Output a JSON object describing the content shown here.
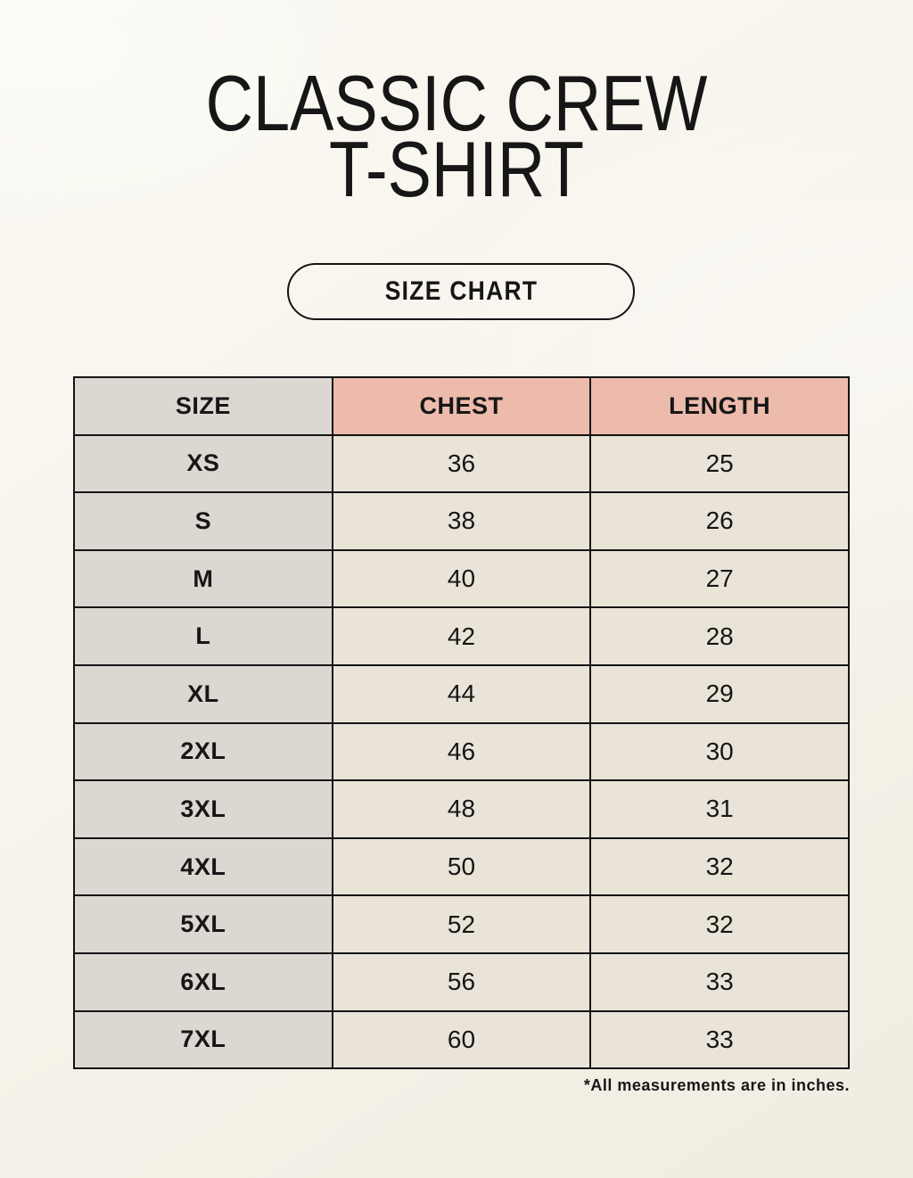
{
  "header": {
    "title_line1": "CLASSIC CREW",
    "title_line2": "T-SHIRT",
    "size_chart_badge": "SIZE CHART"
  },
  "table": {
    "columns": [
      "SIZE",
      "CHEST",
      "LENGTH"
    ],
    "rows": [
      [
        "XS",
        "36",
        "25"
      ],
      [
        "S",
        "38",
        "26"
      ],
      [
        "M",
        "40",
        "27"
      ],
      [
        "L",
        "42",
        "28"
      ],
      [
        "XL",
        "44",
        "29"
      ],
      [
        "2XL",
        "46",
        "30"
      ],
      [
        "3XL",
        "48",
        "31"
      ],
      [
        "4XL",
        "50",
        "32"
      ],
      [
        "5XL",
        "52",
        "32"
      ],
      [
        "6XL",
        "56",
        "33"
      ],
      [
        "7XL",
        "60",
        "33"
      ]
    ]
  },
  "footnote": "*All measurements are in inches.",
  "colors": {
    "background": "#F7F4EC",
    "table_border": "#141414",
    "gray_cell": "#DDD7D2",
    "pink_header": "#ECBBAB",
    "cream_cell": "#EAE4D8",
    "text": "#161616"
  },
  "chart_data": {
    "type": "table",
    "title": "CLASSIC CREW T-SHIRT SIZE CHART",
    "columns": [
      "SIZE",
      "CHEST",
      "LENGTH"
    ],
    "rows": [
      {
        "size": "XS",
        "chest": 36,
        "length": 25
      },
      {
        "size": "S",
        "chest": 38,
        "length": 26
      },
      {
        "size": "M",
        "chest": 40,
        "length": 27
      },
      {
        "size": "L",
        "chest": 42,
        "length": 28
      },
      {
        "size": "XL",
        "chest": 44,
        "length": 29
      },
      {
        "size": "2XL",
        "chest": 46,
        "length": 30
      },
      {
        "size": "3XL",
        "chest": 48,
        "length": 31
      },
      {
        "size": "4XL",
        "chest": 50,
        "length": 32
      },
      {
        "size": "5XL",
        "chest": 52,
        "length": 32
      },
      {
        "size": "6XL",
        "chest": 56,
        "length": 33
      },
      {
        "size": "7XL",
        "chest": 60,
        "length": 33
      }
    ],
    "units": "inches"
  }
}
